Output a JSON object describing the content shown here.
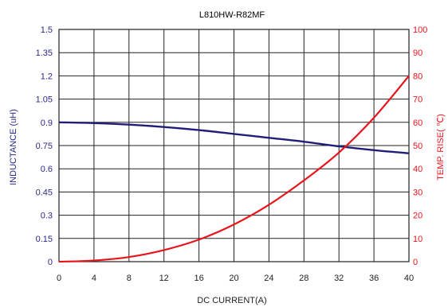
{
  "chart_data": {
    "type": "line",
    "title": "L810HW-R82MF",
    "xlabel": "DC CURRENT(A)",
    "ylabel_left": "INDUCTANCE (uH)",
    "ylabel_right": "TEMP. RISE( ℃)",
    "xlim": [
      0,
      40
    ],
    "ylim_left": [
      0,
      1.5
    ],
    "ylim_right": [
      0,
      100
    ],
    "x_ticks": [
      "0",
      "4",
      "8",
      "12",
      "16",
      "20",
      "24",
      "28",
      "32",
      "36",
      "40"
    ],
    "y_left_ticks": [
      "0",
      "0.15",
      "0.3",
      "0.45",
      "0.6",
      "0.75",
      "0.9",
      "1.05",
      "1.2",
      "1.35",
      "1.5"
    ],
    "y_right_ticks": [
      "0",
      "10",
      "20",
      "30",
      "40",
      "50",
      "60",
      "70",
      "80",
      "90",
      "100"
    ],
    "grid": true,
    "series": [
      {
        "name": "INDUCTANCE (uH)",
        "axis": "left",
        "color": "#1f1f7a",
        "x": [
          0,
          4,
          8,
          12,
          16,
          20,
          24,
          28,
          32,
          36,
          40
        ],
        "y": [
          0.9,
          0.895,
          0.885,
          0.87,
          0.85,
          0.825,
          0.8,
          0.775,
          0.745,
          0.72,
          0.7
        ]
      },
      {
        "name": "TEMP. RISE( ℃)",
        "axis": "right",
        "color": "#e8141c",
        "x": [
          0,
          4,
          8,
          12,
          16,
          20,
          24,
          28,
          32,
          36,
          40
        ],
        "y": [
          0,
          0.5,
          2,
          5,
          9.5,
          16,
          24.5,
          35,
          47,
          62,
          80
        ]
      }
    ]
  }
}
